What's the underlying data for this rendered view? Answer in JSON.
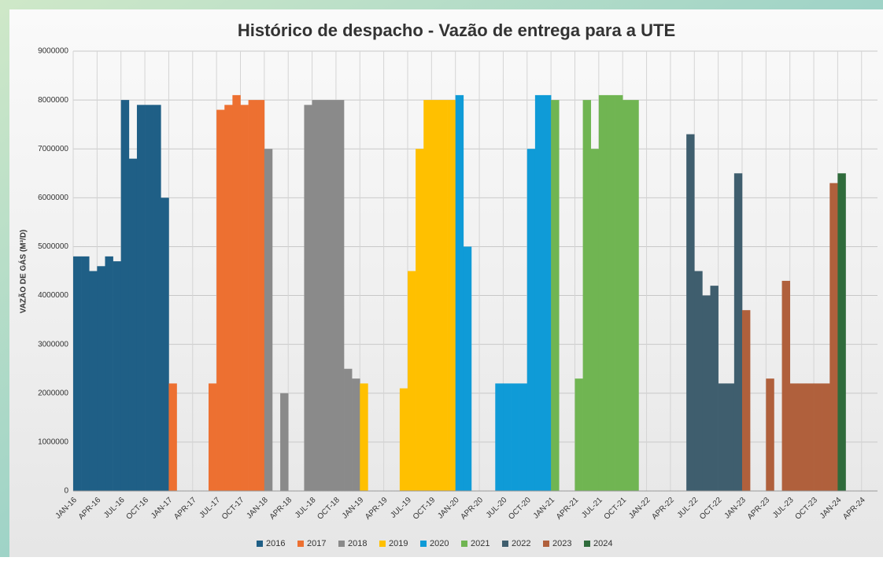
{
  "chart_data": {
    "type": "bar",
    "title": "Histórico de despacho - Vazão de entrega para a UTE",
    "y_label": "VAZÃO DE GÁS (M³/D)",
    "categories": [
      "JAN-16",
      null,
      null,
      "APR-16",
      null,
      null,
      "JUL-16",
      null,
      null,
      "OCT-16",
      null,
      null,
      "JAN-17",
      null,
      null,
      "APR-17",
      null,
      null,
      "JUL-17",
      null,
      null,
      "OCT-17",
      null,
      null,
      "JAN-18",
      null,
      null,
      "APR-18",
      null,
      null,
      "JUL-18",
      null,
      null,
      "OCT-18",
      null,
      null,
      "JAN-19",
      null,
      null,
      "APR-19",
      null,
      null,
      "JUL-19",
      null,
      null,
      "OCT-19",
      null,
      null,
      "JAN-20",
      null,
      null,
      "APR-20",
      null,
      null,
      "JUL-20",
      null,
      null,
      "OCT-20",
      null,
      null,
      "JAN-21",
      null,
      null,
      "APR-21",
      null,
      null,
      "JUL-21",
      null,
      null,
      "OCT-21",
      null,
      null,
      "JAN-22",
      null,
      null,
      "APR-22",
      null,
      null,
      "JUL-22",
      null,
      null,
      "OCT-22",
      null,
      null,
      "JAN-23",
      null,
      null,
      "APR-23",
      null,
      null,
      "JUL-23",
      null,
      null,
      "OCT-23",
      null,
      null,
      "JAN-24",
      null,
      null,
      "APR-24"
    ],
    "series": [
      {
        "name": "2016",
        "color": "#1f5f86",
        "values": [
          4800000,
          4800000,
          4500000,
          4600000,
          4800000,
          4700000,
          8000000,
          6800000,
          7900000,
          7900000,
          7900000,
          6000000,
          null,
          null,
          null,
          null,
          null,
          null,
          null,
          null,
          null,
          null,
          null,
          null,
          null,
          null,
          null,
          null,
          null,
          null,
          null,
          null,
          null,
          null,
          null,
          null,
          null,
          null,
          null,
          null,
          null,
          null,
          null,
          null,
          null,
          null,
          null,
          null,
          null,
          null,
          null,
          null,
          null,
          null,
          null,
          null,
          null,
          null,
          null,
          null,
          null,
          null,
          null,
          null,
          null,
          null,
          null,
          null,
          null,
          null,
          null,
          null,
          null,
          null,
          null,
          null,
          null,
          null,
          null,
          null,
          null,
          null,
          null,
          null,
          null,
          null,
          null,
          null,
          null,
          null,
          null,
          null,
          null,
          null,
          null,
          null,
          null,
          null,
          null,
          null
        ]
      },
      {
        "name": "2017",
        "color": "#ed7031",
        "values": [
          null,
          null,
          null,
          null,
          null,
          null,
          null,
          null,
          null,
          null,
          null,
          null,
          2200000,
          0,
          0,
          0,
          0,
          2200000,
          7800000,
          7900000,
          8100000,
          7900000,
          8000000,
          8000000,
          null,
          null,
          null,
          null,
          null,
          null,
          null,
          null,
          null,
          null,
          null,
          null,
          null,
          null,
          null,
          null,
          null,
          null,
          null,
          null,
          null,
          null,
          null,
          null,
          null,
          null,
          null,
          null,
          null,
          null,
          null,
          null,
          null,
          null,
          null,
          null,
          null,
          null,
          null,
          null,
          null,
          null,
          null,
          null,
          null,
          null,
          null,
          null,
          null,
          null,
          null,
          null,
          null,
          null,
          null,
          null,
          null,
          null,
          null,
          null,
          null,
          null,
          null,
          null,
          null,
          null,
          null,
          null,
          null,
          null,
          null,
          null,
          null,
          null,
          null,
          null
        ]
      },
      {
        "name": "2018",
        "color": "#8a8a8a",
        "values": [
          null,
          null,
          null,
          null,
          null,
          null,
          null,
          null,
          null,
          null,
          null,
          null,
          null,
          null,
          null,
          null,
          null,
          null,
          null,
          null,
          null,
          null,
          null,
          null,
          7000000,
          0,
          2000000,
          0,
          0,
          7900000,
          8000000,
          8000000,
          8000000,
          8000000,
          2500000,
          2300000,
          null,
          null,
          null,
          null,
          null,
          null,
          null,
          null,
          null,
          null,
          null,
          null,
          null,
          null,
          null,
          null,
          null,
          null,
          null,
          null,
          null,
          null,
          null,
          null,
          null,
          null,
          null,
          null,
          null,
          null,
          null,
          null,
          null,
          null,
          null,
          null,
          null,
          null,
          null,
          null,
          null,
          null,
          null,
          null,
          null,
          null,
          null,
          null,
          null,
          null,
          null,
          null,
          null,
          null,
          null,
          null,
          null,
          null,
          null,
          null,
          null,
          null,
          null,
          null
        ]
      },
      {
        "name": "2019",
        "color": "#ffc000",
        "values": [
          null,
          null,
          null,
          null,
          null,
          null,
          null,
          null,
          null,
          null,
          null,
          null,
          null,
          null,
          null,
          null,
          null,
          null,
          null,
          null,
          null,
          null,
          null,
          null,
          null,
          null,
          null,
          null,
          null,
          null,
          null,
          null,
          null,
          null,
          null,
          null,
          2200000,
          0,
          0,
          0,
          0,
          2100000,
          4500000,
          7000000,
          8000000,
          8000000,
          8000000,
          8000000,
          null,
          null,
          null,
          null,
          null,
          null,
          null,
          null,
          null,
          null,
          null,
          null,
          null,
          null,
          null,
          null,
          null,
          null,
          null,
          null,
          null,
          null,
          null,
          null,
          null,
          null,
          null,
          null,
          null,
          null,
          null,
          null,
          null,
          null,
          null,
          null,
          null,
          null,
          null,
          null,
          null,
          null,
          null,
          null,
          null,
          null,
          null,
          null,
          null,
          null,
          null,
          null
        ]
      },
      {
        "name": "2020",
        "color": "#0f9bd7",
        "values": [
          null,
          null,
          null,
          null,
          null,
          null,
          null,
          null,
          null,
          null,
          null,
          null,
          null,
          null,
          null,
          null,
          null,
          null,
          null,
          null,
          null,
          null,
          null,
          null,
          null,
          null,
          null,
          null,
          null,
          null,
          null,
          null,
          null,
          null,
          null,
          null,
          null,
          null,
          null,
          null,
          null,
          null,
          null,
          null,
          null,
          null,
          null,
          null,
          8100000,
          5000000,
          0,
          0,
          0,
          2200000,
          2200000,
          2200000,
          2200000,
          7000000,
          8100000,
          8100000,
          null,
          null,
          null,
          null,
          null,
          null,
          null,
          null,
          null,
          null,
          null,
          null,
          null,
          null,
          null,
          null,
          null,
          null,
          null,
          null,
          null,
          null,
          null,
          null,
          null,
          null,
          null,
          null,
          null,
          null,
          null,
          null,
          null,
          null,
          null,
          null,
          null,
          null,
          null,
          null
        ]
      },
      {
        "name": "2021",
        "color": "#70b552",
        "values": [
          null,
          null,
          null,
          null,
          null,
          null,
          null,
          null,
          null,
          null,
          null,
          null,
          null,
          null,
          null,
          null,
          null,
          null,
          null,
          null,
          null,
          null,
          null,
          null,
          null,
          null,
          null,
          null,
          null,
          null,
          null,
          null,
          null,
          null,
          null,
          null,
          null,
          null,
          null,
          null,
          null,
          null,
          null,
          null,
          null,
          null,
          null,
          null,
          null,
          null,
          null,
          null,
          null,
          null,
          null,
          null,
          null,
          null,
          null,
          null,
          8000000,
          0,
          0,
          2300000,
          8000000,
          7000000,
          8100000,
          8100000,
          8100000,
          8000000,
          8000000,
          0,
          null,
          null,
          null,
          null,
          null,
          null,
          null,
          null,
          null,
          null,
          null,
          null,
          null,
          null,
          null,
          null,
          null,
          null,
          null,
          null,
          null,
          null,
          null,
          null,
          null,
          null,
          null,
          null
        ]
      },
      {
        "name": "2022",
        "color": "#3f5e6e",
        "values": [
          null,
          null,
          null,
          null,
          null,
          null,
          null,
          null,
          null,
          null,
          null,
          null,
          null,
          null,
          null,
          null,
          null,
          null,
          null,
          null,
          null,
          null,
          null,
          null,
          null,
          null,
          null,
          null,
          null,
          null,
          null,
          null,
          null,
          null,
          null,
          null,
          null,
          null,
          null,
          null,
          null,
          null,
          null,
          null,
          null,
          null,
          null,
          null,
          null,
          null,
          null,
          null,
          null,
          null,
          null,
          null,
          null,
          null,
          null,
          null,
          null,
          null,
          null,
          null,
          null,
          null,
          null,
          null,
          null,
          null,
          null,
          null,
          0,
          0,
          0,
          0,
          0,
          7300000,
          4500000,
          4000000,
          4200000,
          2200000,
          2200000,
          6500000,
          null,
          null,
          null,
          null,
          null,
          null,
          null,
          null,
          null,
          null,
          null,
          null,
          null,
          null,
          null,
          null
        ]
      },
      {
        "name": "2023",
        "color": "#b0603c",
        "values": [
          null,
          null,
          null,
          null,
          null,
          null,
          null,
          null,
          null,
          null,
          null,
          null,
          null,
          null,
          null,
          null,
          null,
          null,
          null,
          null,
          null,
          null,
          null,
          null,
          null,
          null,
          null,
          null,
          null,
          null,
          null,
          null,
          null,
          null,
          null,
          null,
          null,
          null,
          null,
          null,
          null,
          null,
          null,
          null,
          null,
          null,
          null,
          null,
          null,
          null,
          null,
          null,
          null,
          null,
          null,
          null,
          null,
          null,
          null,
          null,
          null,
          null,
          null,
          null,
          null,
          null,
          null,
          null,
          null,
          null,
          null,
          null,
          null,
          null,
          null,
          null,
          null,
          null,
          null,
          null,
          null,
          null,
          null,
          null,
          3700000,
          0,
          0,
          2300000,
          0,
          4300000,
          2200000,
          2200000,
          2200000,
          2200000,
          2200000,
          6300000,
          null,
          null,
          null,
          null
        ]
      },
      {
        "name": "2024",
        "color": "#2f6b3b",
        "values": [
          null,
          null,
          null,
          null,
          null,
          null,
          null,
          null,
          null,
          null,
          null,
          null,
          null,
          null,
          null,
          null,
          null,
          null,
          null,
          null,
          null,
          null,
          null,
          null,
          null,
          null,
          null,
          null,
          null,
          null,
          null,
          null,
          null,
          null,
          null,
          null,
          null,
          null,
          null,
          null,
          null,
          null,
          null,
          null,
          null,
          null,
          null,
          null,
          null,
          null,
          null,
          null,
          null,
          null,
          null,
          null,
          null,
          null,
          null,
          null,
          null,
          null,
          null,
          null,
          null,
          null,
          null,
          null,
          null,
          null,
          null,
          null,
          null,
          null,
          null,
          null,
          null,
          null,
          null,
          null,
          null,
          null,
          null,
          null,
          null,
          null,
          null,
          null,
          null,
          null,
          null,
          null,
          null,
          null,
          null,
          null,
          6500000,
          0,
          0,
          0
        ]
      }
    ],
    "ylim": [
      0,
      9000000
    ],
    "yticks": [
      0,
      1000000,
      2000000,
      3000000,
      4000000,
      5000000,
      6000000,
      7000000,
      8000000,
      9000000
    ],
    "grid": true,
    "legend": "bottom"
  }
}
